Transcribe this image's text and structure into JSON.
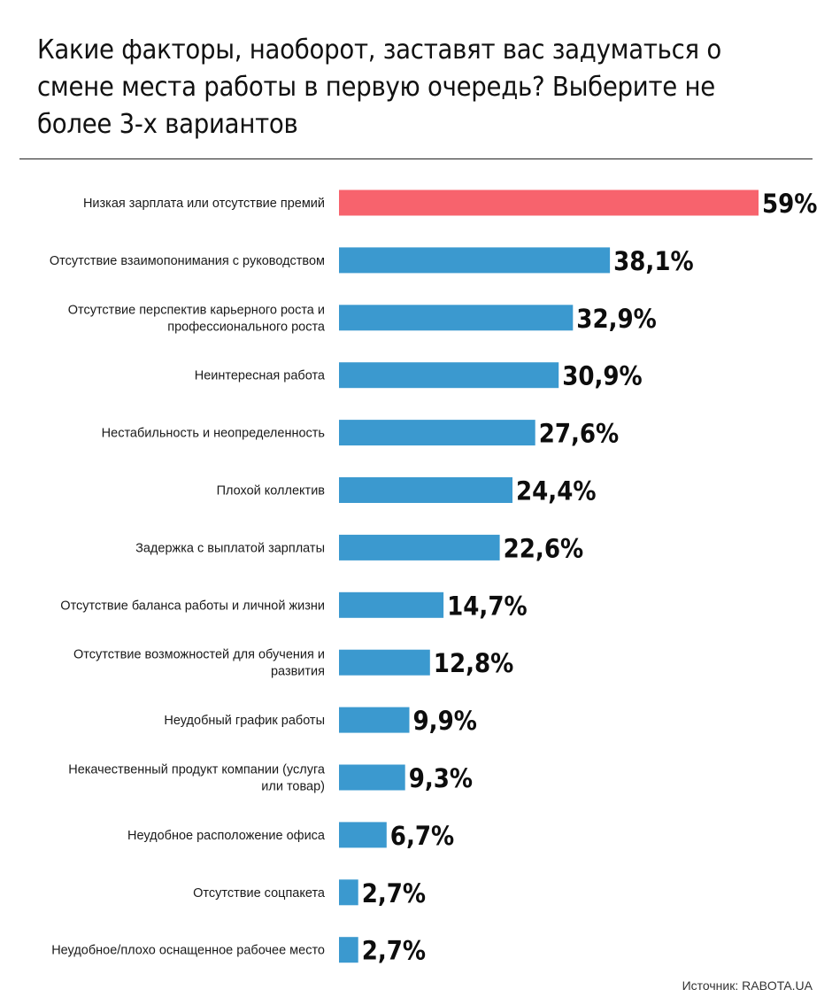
{
  "title": "Какие факторы, наоборот, заставят вас задуматься о смене места работы в первую очередь? Выберите не более 3-х вариантов",
  "source": "Источник: RABOTA.UA",
  "colors": {
    "highlight": "#f7636d",
    "bar": "#3b99cf"
  },
  "chart_data": {
    "type": "bar",
    "orientation": "horizontal",
    "categories": [
      [
        "Низкая зарплата или отсутствие премий"
      ],
      [
        "Отсутствие взаимопонимания с руководством"
      ],
      [
        "Отсутствие перспектив карьерного роста и",
        "профессионального роста"
      ],
      [
        "Неинтересная работа"
      ],
      [
        "Нестабильность и неопределенность"
      ],
      [
        "Плохой коллектив"
      ],
      [
        "Задержка с выплатой зарплаты"
      ],
      [
        "Отсутствие баланса работы и личной жизни"
      ],
      [
        "Отсутствие возможностей для обучения и",
        "развития"
      ],
      [
        "Неудобный график работы"
      ],
      [
        "Некачественный продукт компании (услуга",
        "или товар)"
      ],
      [
        "Неудобное расположение офиса"
      ],
      [
        "Отсутствие соцпакета"
      ],
      [
        "Неудобное/плохо оснащенное рабочее место"
      ]
    ],
    "values": [
      59,
      38.1,
      32.9,
      30.9,
      27.6,
      24.4,
      22.6,
      14.7,
      12.8,
      9.9,
      9.3,
      6.7,
      2.7,
      2.7
    ],
    "value_labels": [
      "59%",
      "38,1%",
      "32,9%",
      "30,9%",
      "27,6%",
      "24,4%",
      "22,6%",
      "14,7%",
      "12,8%",
      "9,9%",
      "9,3%",
      "6,7%",
      "2,7%",
      "2,7%"
    ],
    "highlight_index": 0,
    "xlim": [
      0,
      59
    ],
    "grid": false,
    "legend": "none"
  }
}
